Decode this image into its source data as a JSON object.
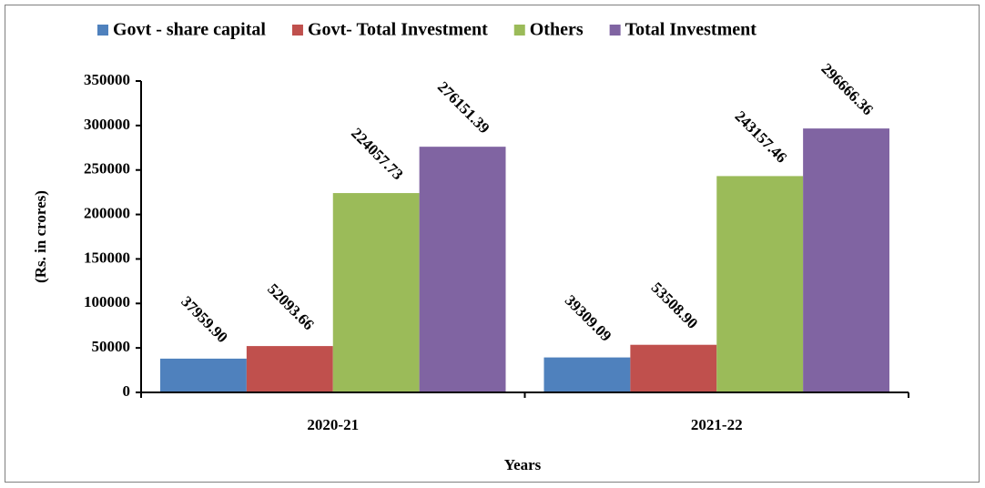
{
  "chart_data": {
    "type": "bar",
    "categories": [
      "2020-21",
      "2021-22"
    ],
    "series": [
      {
        "name": "Govt - share capital",
        "color": "#4f81bd",
        "values": [
          37959.9,
          39309.09
        ],
        "value_labels": [
          "37959.90",
          "39309.09"
        ]
      },
      {
        "name": "Govt- Total Investment",
        "color": "#c0504d",
        "values": [
          52093.66,
          53508.9
        ],
        "value_labels": [
          "52093.66",
          "53508.90"
        ]
      },
      {
        "name": "Others",
        "color": "#9bbb59",
        "values": [
          224057.73,
          243157.46
        ],
        "value_labels": [
          "224057.73",
          "243157.46"
        ]
      },
      {
        "name": "Total Investment",
        "color": "#8064a2",
        "values": [
          276151.39,
          296666.36
        ],
        "value_labels": [
          "276151.39",
          "296666.36"
        ]
      }
    ],
    "ylim": [
      0,
      350000
    ],
    "yticks": [
      0,
      50000,
      100000,
      150000,
      200000,
      250000,
      300000,
      350000
    ],
    "y_label": "(Rs. in crores)",
    "x_label": "Years",
    "legend": "top"
  }
}
